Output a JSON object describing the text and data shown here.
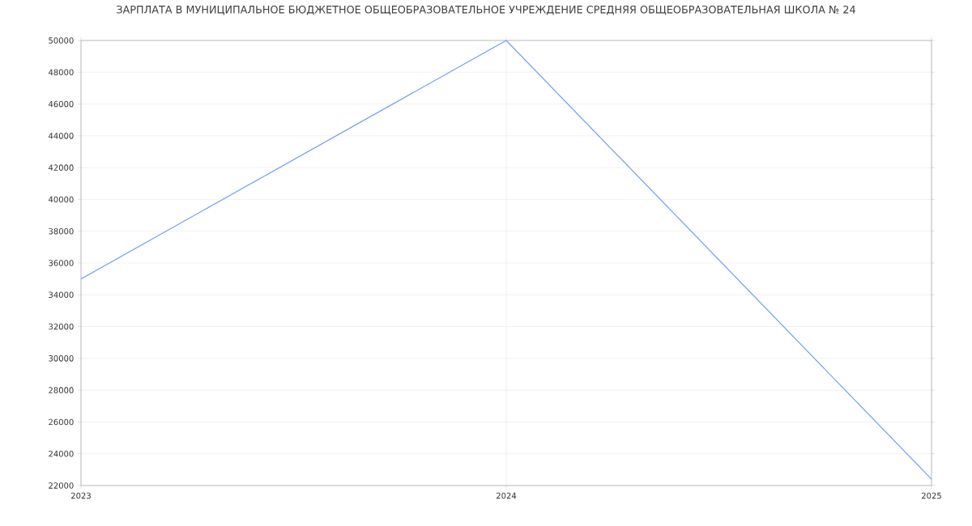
{
  "chart_data": {
    "type": "line",
    "title": "ЗАРПЛАТА В МУНИЦИПАЛЬНОЕ БЮДЖЕТНОЕ ОБЩЕОБРАЗОВАТЕЛЬНОЕ УЧРЕЖДЕНИЕ СРЕДНЯЯ ОБЩЕОБРАЗОВАТЕЛЬНАЯ ШКОЛА № 24",
    "x": [
      2023,
      2024,
      2025
    ],
    "series": [
      {
        "color": "#6f9ff5",
        "values": [
          35000,
          50000,
          22400
        ]
      }
    ],
    "xlim": [
      2023,
      2025
    ],
    "xticks": [
      2023,
      2024,
      2025
    ],
    "ylim": [
      22000,
      50000
    ],
    "yticks": [
      22000,
      24000,
      26000,
      28000,
      30000,
      32000,
      34000,
      36000,
      38000,
      40000,
      42000,
      44000,
      46000,
      48000,
      50000
    ],
    "grid": true,
    "marker": "none",
    "line_style": "solid"
  }
}
